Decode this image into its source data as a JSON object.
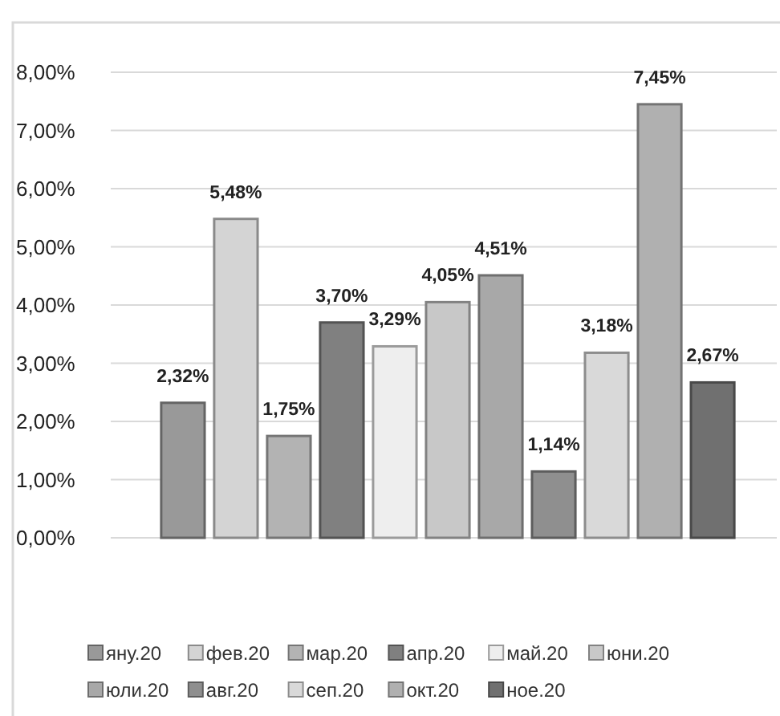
{
  "chart_data": {
    "type": "bar",
    "categories": [
      null
    ],
    "series": [
      {
        "name": "яну.20",
        "color": "#999999",
        "values": [
          2.32
        ],
        "value_labels": [
          "2,32%"
        ]
      },
      {
        "name": "фев.20",
        "color": "#d4d4d4",
        "values": [
          5.48
        ],
        "value_labels": [
          "5,48%"
        ]
      },
      {
        "name": "мар.20",
        "color": "#b3b3b3",
        "values": [
          1.75
        ],
        "value_labels": [
          "1,75%"
        ]
      },
      {
        "name": "апр.20",
        "color": "#808080",
        "values": [
          3.7
        ],
        "value_labels": [
          "3,70%"
        ]
      },
      {
        "name": "май.20",
        "color": "#eeeeee",
        "values": [
          3.29
        ],
        "value_labels": [
          "3,29%"
        ]
      },
      {
        "name": "юни.20",
        "color": "#c8c8c8",
        "values": [
          4.05
        ],
        "value_labels": [
          "4,05%"
        ]
      },
      {
        "name": "юли.20",
        "color": "#a8a8a8",
        "values": [
          4.51
        ],
        "value_labels": [
          "4,51%"
        ]
      },
      {
        "name": "авг.20",
        "color": "#8f8f8f",
        "values": [
          1.14
        ],
        "value_labels": [
          "1,14%"
        ]
      },
      {
        "name": "сеп.20",
        "color": "#d9d9d9",
        "values": [
          3.18
        ],
        "value_labels": [
          "3,18%"
        ]
      },
      {
        "name": "окт.20",
        "color": "#b0b0b0",
        "values": [
          7.45
        ],
        "value_labels": [
          "7,45%"
        ]
      },
      {
        "name": "ное.20",
        "color": "#707070",
        "values": [
          2.67
        ],
        "value_labels": [
          "2,67%"
        ]
      }
    ],
    "ylim": [
      0,
      8
    ],
    "yticks": [
      {
        "value": 0,
        "label": "0,00%"
      },
      {
        "value": 1,
        "label": "1,00%"
      },
      {
        "value": 2,
        "label": "2,00%"
      },
      {
        "value": 3,
        "label": "3,00%"
      },
      {
        "value": 4,
        "label": "4,00%"
      },
      {
        "value": 5,
        "label": "5,00%"
      },
      {
        "value": 6,
        "label": "6,00%"
      },
      {
        "value": 7,
        "label": "7,00%"
      },
      {
        "value": 8,
        "label": "8,00%"
      }
    ],
    "grid": "y",
    "legend": "bottom"
  }
}
